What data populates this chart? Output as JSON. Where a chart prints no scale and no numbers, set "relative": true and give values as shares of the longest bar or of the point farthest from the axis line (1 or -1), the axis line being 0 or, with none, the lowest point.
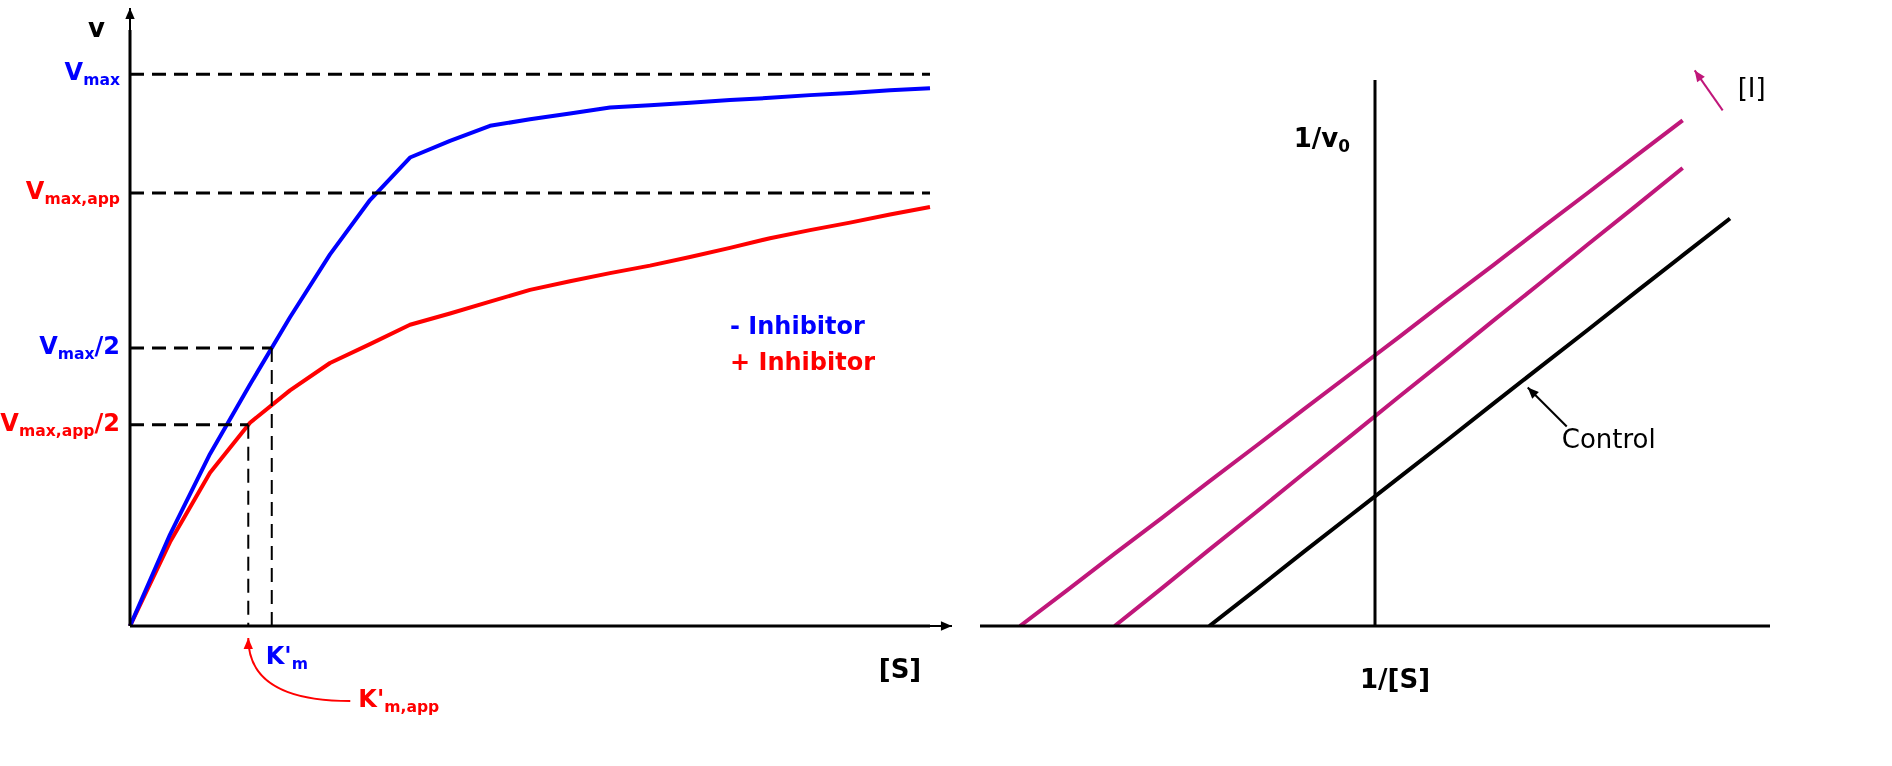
{
  "chart_data": [
    {
      "type": "line",
      "relative": true,
      "ylabel": "v",
      "xlabel": "[S]",
      "marker": "none",
      "line_style": "solid",
      "categories": [
        null,
        null,
        null,
        null,
        null,
        null,
        null,
        null,
        null,
        null,
        null,
        null,
        null,
        null,
        null,
        null,
        null,
        null,
        null,
        null,
        null
      ],
      "annotations": [
        "K'$_{m}$",
        "K'$_{m,app}$"
      ],
      "series": [
        {
          "name": "- Inhibitor",
          "color": "#0000ff",
          "values": [
            0,
            0.17,
            0.32,
            0.449,
            0.574,
            0.691,
            0.792,
            0.871,
            0.902,
            0.93,
            0.942,
            0.953,
            0.964,
            0.968,
            0.973,
            0.978,
            0.982,
            0.987,
            0.991,
            0.996,
            1.0
          ]
        },
        {
          "name": "+ Inhibitor",
          "color": "#ff0000",
          "values": [
            0,
            0.156,
            0.285,
            0.378,
            0.438,
            0.489,
            0.524,
            0.56,
            0.581,
            0.603,
            0.625,
            0.641,
            0.656,
            0.67,
            0.686,
            0.703,
            0.721,
            0.736,
            0.75,
            0.765,
            0.779
          ]
        }
      ],
      "ref_lines": [
        {
          "axis": "y",
          "value": 1.026,
          "label": "V$_{max}$",
          "color": "#000000",
          "line_style": "dashed"
        },
        {
          "axis": "y",
          "value": 0.805,
          "label": "V$_{max,app}$",
          "color": "#000000",
          "line_style": "dashed"
        },
        {
          "axis": "y",
          "value": 0.517,
          "label": "V$_{max}$/2",
          "color": "#000000",
          "line_style": "dashed"
        },
        {
          "axis": "y",
          "value": 0.374,
          "label": "V$_{max,app}$/2",
          "color": "#000000",
          "line_style": "dashed"
        }
      ]
    },
    {
      "type": "line",
      "relative": true,
      "ylabel": "1/v$_{0}$",
      "xlabel": "1/[S]",
      "marker": "none",
      "line_style": "solid",
      "annotations": [
        "[I]"
      ],
      "categories": [
        null,
        null,
        null,
        null,
        null,
        null,
        null,
        null,
        null,
        null,
        null,
        null,
        null,
        null,
        null,
        null
      ],
      "series": [
        {
          "color": "#c0177a",
          "values": [
            0,
            0.071,
            0.143,
            0.214,
            0.286,
            0.357,
            0.429,
            0.5,
            0.571,
            0.643,
            0.714,
            0.786,
            0.857,
            0.929,
            1.0,
            null
          ]
        },
        {
          "color": "#c0177a",
          "values": [
            null,
            null,
            0,
            0.075,
            0.151,
            0.226,
            0.302,
            0.377,
            0.453,
            0.528,
            0.604,
            0.679,
            0.755,
            0.83,
            0.906,
            null
          ]
        },
        {
          "name": "Control",
          "color": "#000000",
          "values": [
            null,
            null,
            null,
            null,
            0,
            0.073,
            0.147,
            0.22,
            0.293,
            0.366,
            0.44,
            0.513,
            0.586,
            0.66,
            0.733,
            0.806
          ]
        }
      ]
    }
  ]
}
